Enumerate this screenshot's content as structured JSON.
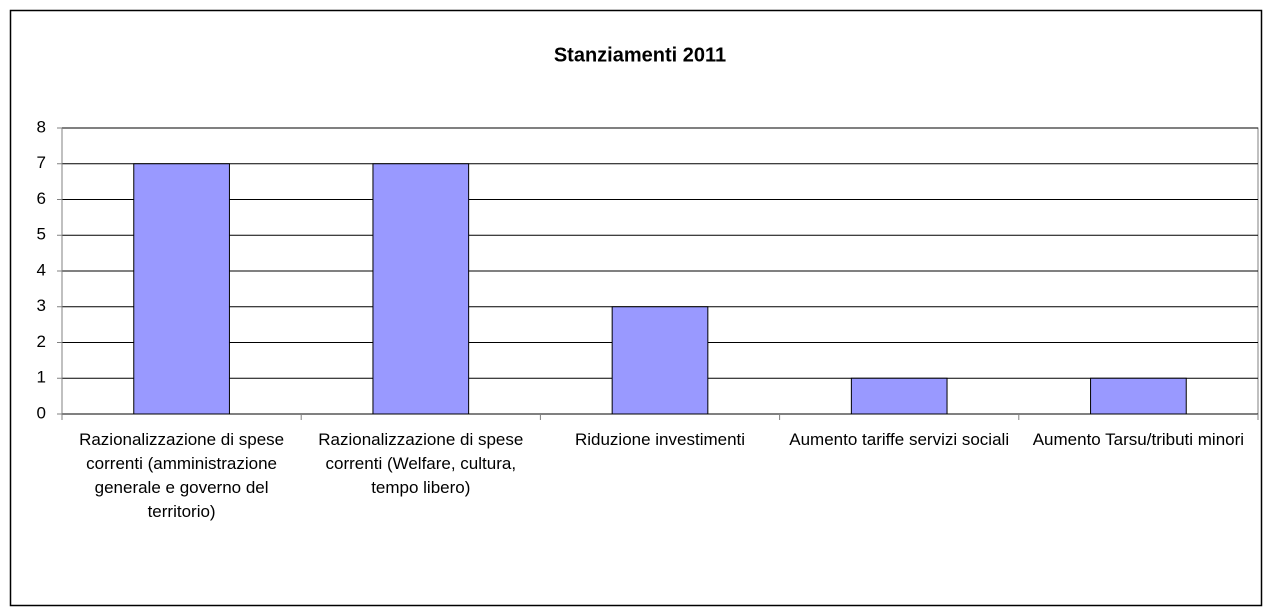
{
  "chart_data": {
    "type": "bar",
    "title": "Stanziamenti 2011",
    "categories": [
      "Razionalizzazione di spese correnti (amministrazione generale e governo del territorio)",
      "Razionalizzazione di spese correnti (Welfare, cultura, tempo libero)",
      "Riduzione investimenti",
      "Aumento tariffe servizi sociali",
      "Aumento Tarsu/tributi minori"
    ],
    "values": [
      7,
      7,
      3,
      1,
      1
    ],
    "color": "#9999ff",
    "ylim": [
      0,
      8
    ],
    "yticks": [
      0,
      1,
      2,
      3,
      4,
      5,
      6,
      7,
      8
    ],
    "grid": true
  }
}
